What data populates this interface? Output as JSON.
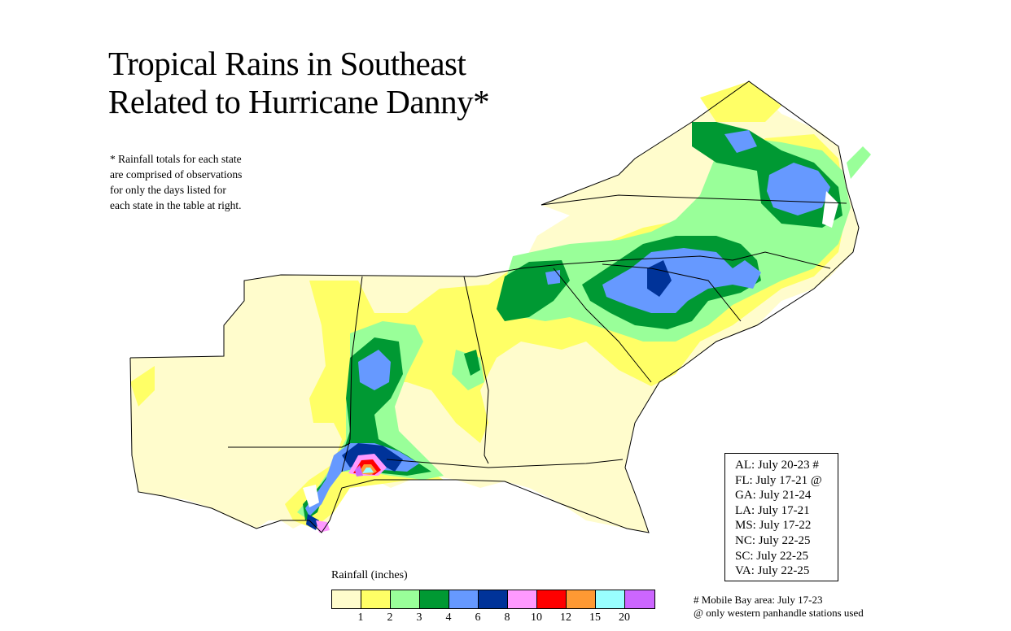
{
  "title": {
    "line1": "Tropical Rains in Southeast",
    "line2": "Related to Hurricane Danny*"
  },
  "note": [
    "* Rainfall totals for each state",
    "are comprised of observations",
    "for only the days listed for",
    "each state in the table at right."
  ],
  "state_dates": [
    "AL: July 20-23 #",
    "FL: July 17-21 @",
    "GA: July 21-24",
    "LA: July 17-21",
    "MS: July 17-22",
    "NC: July 22-25",
    "SC: July 22-25",
    "VA: July 22-25"
  ],
  "footnotes": [
    "# Mobile Bay area: July 17-23",
    "@ only western panhandle stations used"
  ],
  "legend": {
    "title": "Rainfall (inches)",
    "colors": [
      "#fffccc",
      "#ffff66",
      "#99ff99",
      "#009933",
      "#6699ff",
      "#003399",
      "#ff99ff",
      "#ff0000",
      "#ff9933",
      "#99ffff",
      "#cc66ff"
    ],
    "ticks": [
      "1",
      "2",
      "3",
      "4",
      "6",
      "8",
      "10",
      "12",
      "15",
      "20"
    ]
  }
}
